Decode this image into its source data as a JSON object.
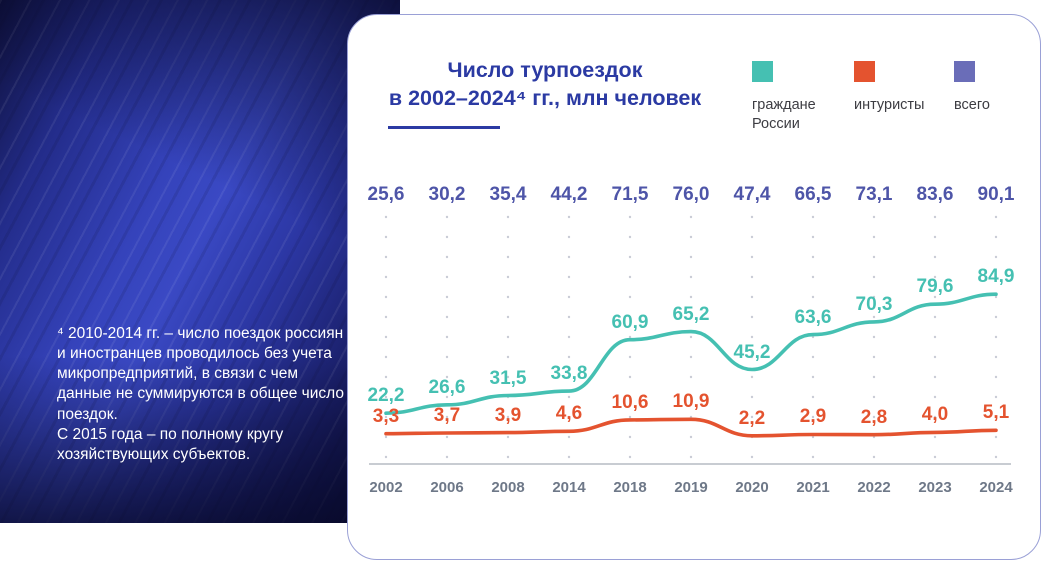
{
  "footnote": {
    "part1": "⁴ 2010-2014 гг. – число поездок россиян и иностранцев проводилось без учета микропредприятий, в связи с чем данные не суммируются в общее число поездок.",
    "part2": "С 2015 года – по полному кругу хозяйствующих субъектов."
  },
  "chart_data": {
    "type": "line",
    "title": "Число турпоездок в 2002–2024⁴ гг., млн человек",
    "title_line1": "Число турпоездок",
    "title_line2": "в 2002–2024⁴ гг., млн человек",
    "unit": "млн человек",
    "decimal_separator": ",",
    "grid": "dotted",
    "legend_position": "top-right",
    "categories": [
      "2002",
      "2006",
      "2008",
      "2014",
      "2018",
      "2019",
      "2020",
      "2021",
      "2022",
      "2023",
      "2024"
    ],
    "series": [
      {
        "key": "citizens",
        "name": "граждане России",
        "color": "#45c0b2",
        "render": "line",
        "values": [
          22.2,
          26.6,
          31.5,
          33.8,
          60.9,
          65.2,
          45.2,
          63.6,
          70.3,
          79.6,
          84.9
        ]
      },
      {
        "key": "tourists",
        "name": "интуристы",
        "color": "#e4532f",
        "render": "line",
        "values": [
          3.3,
          3.7,
          3.9,
          4.6,
          10.6,
          10.9,
          2.2,
          2.9,
          2.8,
          4.0,
          5.1
        ]
      },
      {
        "key": "total",
        "name": "всего",
        "color": "#4e55a8",
        "render": "labels-row",
        "values": [
          25.6,
          30.2,
          35.4,
          44.2,
          71.5,
          76.0,
          47.4,
          66.5,
          73.1,
          83.6,
          90.1
        ]
      }
    ],
    "legend": [
      {
        "key": "citizens",
        "label": "граждане России",
        "color": "#45c0b2"
      },
      {
        "key": "tourists",
        "label": "интуристы",
        "color": "#e4532f"
      },
      {
        "key": "total",
        "label": "всего",
        "color": "#6a6db8"
      }
    ],
    "colors": {
      "title": "#2b3aa3",
      "total_labels": "#4e55a8",
      "axis_line": "#a8aeb8",
      "grid_dots": "#c9ccd6",
      "year_labels": "#6e7888",
      "legend_text": "#3c3c42",
      "card_border": "#9aa0d6"
    }
  }
}
